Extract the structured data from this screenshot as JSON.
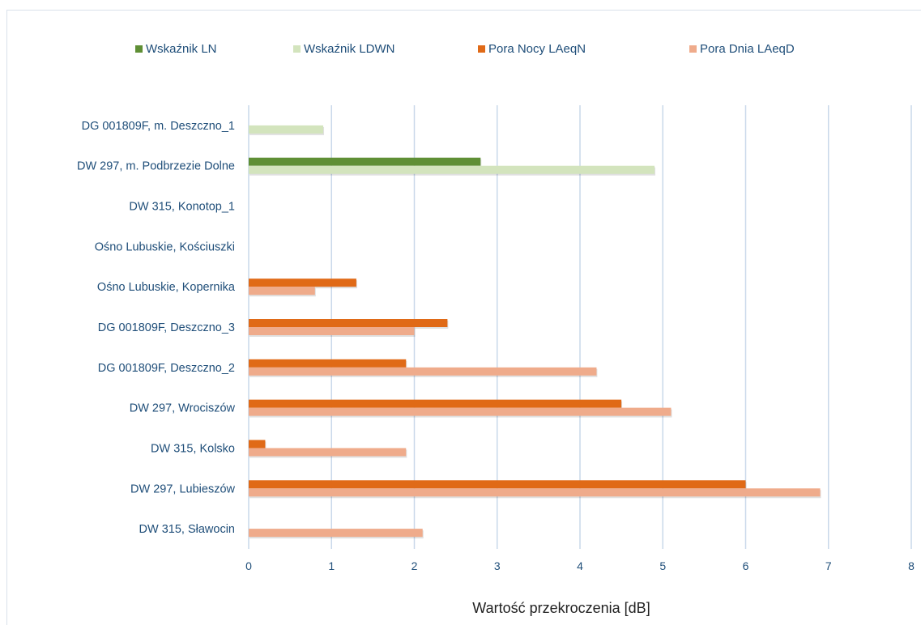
{
  "chart_data": {
    "type": "bar",
    "orientation": "horizontal",
    "title": "",
    "xlabel": "Wartość przekroczenia  [dB]",
    "ylabel": "",
    "xlim": [
      0,
      8
    ],
    "xticks": [
      "0",
      "1",
      "2",
      "3",
      "4",
      "5",
      "6",
      "7",
      "8"
    ],
    "grid": true,
    "legend_position": "top",
    "categories": [
      "DG 001809F, m. Deszczno_1",
      "DW 297, m. Podbrzezie Dolne",
      "DW 315, Konotop_1",
      "Ośno Lubuskie, Kościuszki",
      "Ośno Lubuskie,  Kopernika",
      "DG 001809F,  Deszczno_3",
      "DG 001809F,  Deszczno_2",
      "DW 297,  Wrociszów",
      "DW 315,  Kolsko",
      "DW 297,  Lubieszów",
      "DW 315,  Sławocin"
    ],
    "series": [
      {
        "name": "Wskaźnik LN",
        "color": "#5f8f35",
        "values": [
          0,
          2.8,
          0,
          0,
          0,
          0,
          0,
          0,
          0,
          0,
          0
        ]
      },
      {
        "name": "Wskaźnik LDWN",
        "color": "#d3e4bd",
        "values": [
          0.9,
          4.9,
          0,
          0,
          0,
          0,
          0,
          0,
          0,
          0,
          0
        ]
      },
      {
        "name": "Pora Nocy LAeqN",
        "color": "#e06a17",
        "values": [
          0,
          0,
          0,
          0,
          1.3,
          2.4,
          1.9,
          4.5,
          0.2,
          6.0,
          0
        ]
      },
      {
        "name": "Pora Dnia LAeqD",
        "color": "#efab8b",
        "values": [
          0,
          0,
          0,
          0,
          0.8,
          2.0,
          4.2,
          5.1,
          1.9,
          6.9,
          2.1
        ]
      }
    ]
  }
}
